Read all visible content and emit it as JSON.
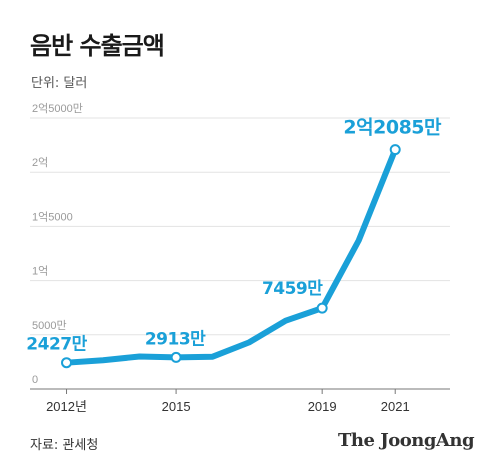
{
  "header": {
    "title": "음반 수출금액",
    "unit": "단위: 달러"
  },
  "footer": {
    "source": "자료: 관세청",
    "brand": "The JoongAng"
  },
  "chart_data": {
    "type": "line",
    "title": "음반 수출금액",
    "ylabel": "",
    "xlabel": "",
    "ylim": [
      0,
      250000000
    ],
    "yticks": [
      {
        "value": 0,
        "label": "0"
      },
      {
        "value": 50000000,
        "label": "5000만"
      },
      {
        "value": 100000000,
        "label": "1억"
      },
      {
        "value": 150000000,
        "label": "1억5000"
      },
      {
        "value": 200000000,
        "label": "2억"
      },
      {
        "value": 250000000,
        "label": "2억5000만"
      }
    ],
    "xticks": [
      {
        "x": 2012,
        "label": "2012년"
      },
      {
        "x": 2015,
        "label": "2015"
      },
      {
        "x": 2019,
        "label": "2019"
      },
      {
        "x": 2021,
        "label": "2021"
      }
    ],
    "xlim": [
      2011,
      2022.5
    ],
    "series": [
      {
        "x": [
          2012,
          2013,
          2014,
          2015,
          2016,
          2017,
          2018,
          2019,
          2020,
          2021
        ],
        "values": [
          24270000,
          26500000,
          30000000,
          29130000,
          29800000,
          43000000,
          63000000,
          74590000,
          137000000,
          220850000
        ]
      }
    ],
    "data_labels": [
      {
        "index": 0,
        "text": "2427만"
      },
      {
        "index": 3,
        "text": "2913만"
      },
      {
        "index": 7,
        "text": "7459만"
      },
      {
        "index": 9,
        "text": "2억2085만"
      }
    ],
    "grid": true,
    "line_color": "#1aa0d8"
  }
}
